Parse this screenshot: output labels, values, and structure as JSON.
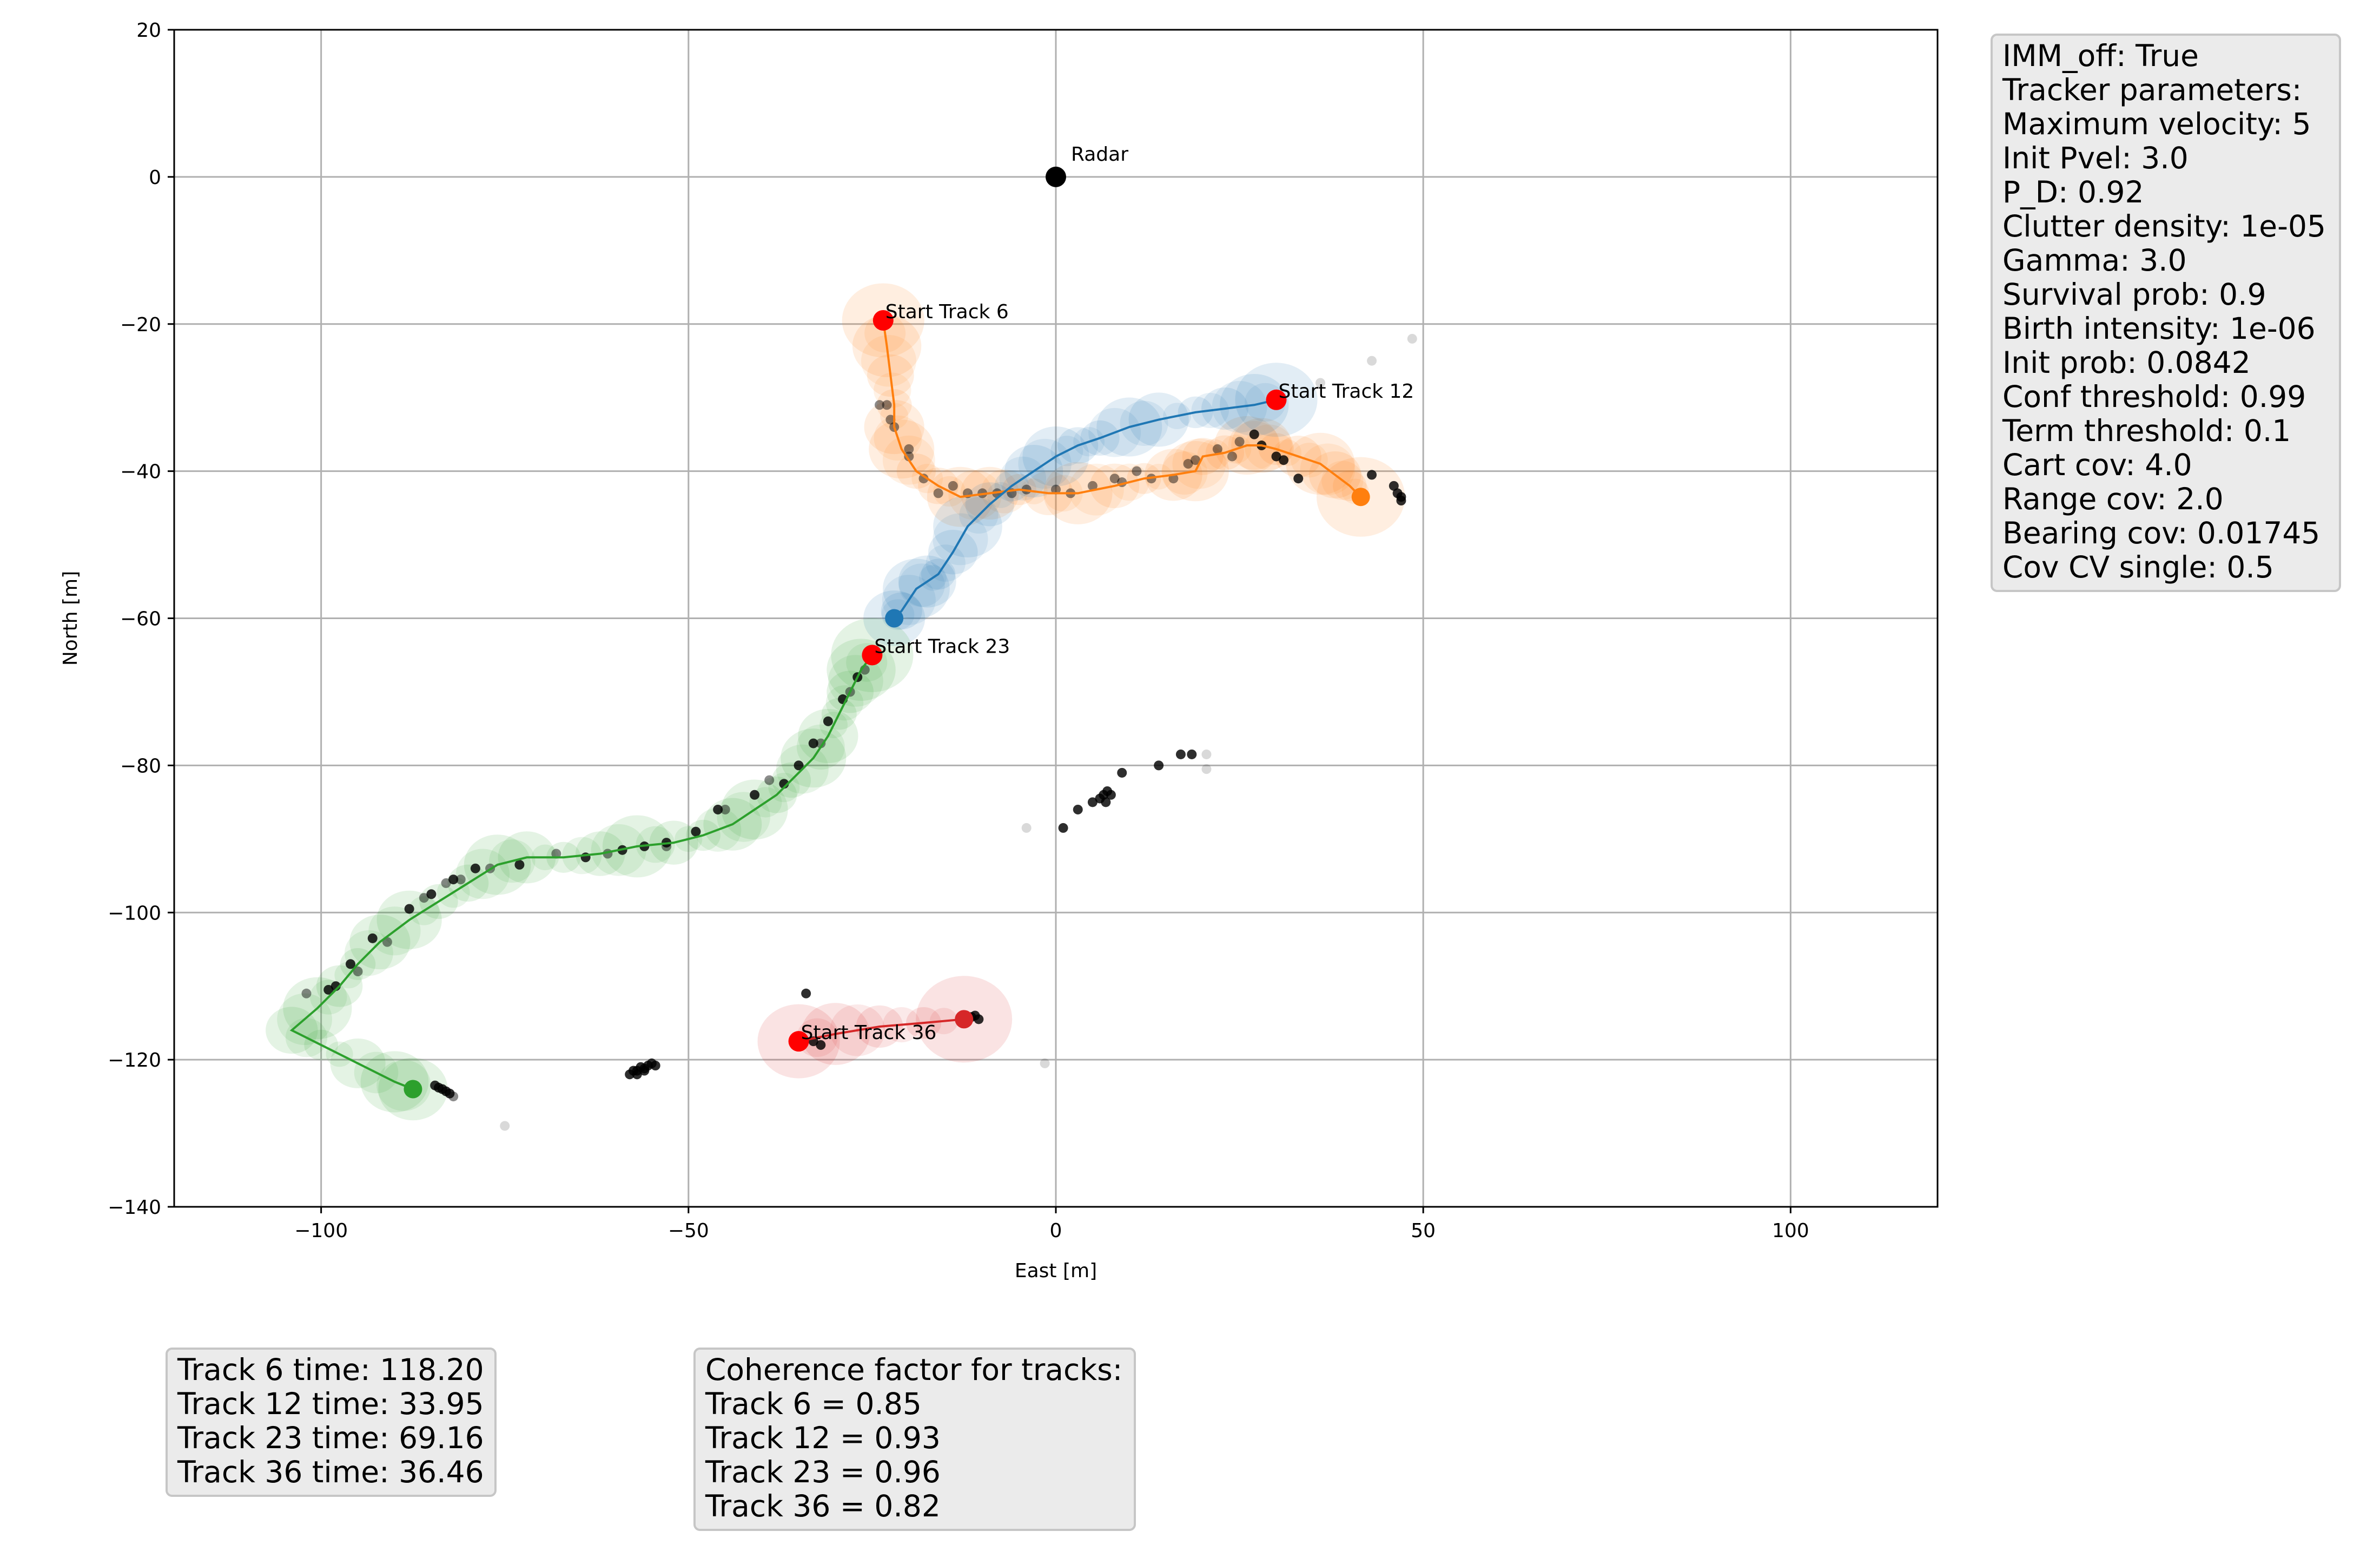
{
  "chart_data": {
    "type": "scatter",
    "xlabel": "East [m]",
    "ylabel": "North [m]",
    "xlim": [
      -120,
      120
    ],
    "ylim": [
      -140,
      20
    ],
    "xticks": [
      -100,
      -50,
      0,
      50,
      100
    ],
    "yticks": [
      20,
      0,
      -20,
      -40,
      -60,
      -80,
      -100,
      -120,
      -140
    ],
    "xtick_labels": [
      "−100",
      "−50",
      "0",
      "50",
      "100"
    ],
    "ytick_labels": [
      "20",
      "0",
      "−20",
      "−40",
      "−60",
      "−80",
      "−100",
      "−120",
      "−140"
    ],
    "grid": true,
    "radar": {
      "x": 0,
      "y": 0,
      "label": "Radar"
    },
    "tracks": [
      {
        "id": 6,
        "color": "#ff7f0e",
        "start_label": "Start Track 6",
        "path": [
          [
            -23.5,
            -19.5
          ],
          [
            -23,
            -23
          ],
          [
            -22.5,
            -27
          ],
          [
            -22,
            -31
          ],
          [
            -22,
            -34
          ],
          [
            -21,
            -37
          ],
          [
            -19,
            -40
          ],
          [
            -16,
            -42
          ],
          [
            -13,
            -43.5
          ],
          [
            -9,
            -43
          ],
          [
            -5,
            -42.5
          ],
          [
            -1,
            -43
          ],
          [
            3,
            -43
          ],
          [
            8,
            -42
          ],
          [
            12,
            -41
          ],
          [
            16,
            -40.5
          ],
          [
            19,
            -40
          ],
          [
            20,
            -38
          ],
          [
            23,
            -37.5
          ],
          [
            26,
            -36.5
          ],
          [
            28,
            -36.5
          ],
          [
            30,
            -37
          ],
          [
            33,
            -38
          ],
          [
            36,
            -39
          ],
          [
            38,
            -40.5
          ],
          [
            40,
            -42
          ],
          [
            41.5,
            -43.5
          ]
        ],
        "end": [
          41.5,
          -43.5
        ]
      },
      {
        "id": 12,
        "color": "#1f77b4",
        "start_label": "Start Track 12",
        "path": [
          [
            30,
            -30.3
          ],
          [
            27,
            -31
          ],
          [
            23,
            -31.5
          ],
          [
            19,
            -32
          ],
          [
            14,
            -33
          ],
          [
            10,
            -34
          ],
          [
            6,
            -35.5
          ],
          [
            3,
            -36.5
          ],
          [
            0,
            -38
          ],
          [
            -3,
            -40
          ],
          [
            -6,
            -42
          ],
          [
            -9,
            -44.5
          ],
          [
            -12,
            -47.5
          ],
          [
            -14,
            -51
          ],
          [
            -16,
            -54
          ],
          [
            -17.5,
            -55
          ],
          [
            -19,
            -56
          ],
          [
            -21,
            -59
          ],
          [
            -22,
            -60
          ]
        ],
        "end": [
          -22,
          -60
        ]
      },
      {
        "id": 23,
        "color": "#2ca02c",
        "start_label": "Start Track 23",
        "path": [
          [
            -25,
            -65
          ],
          [
            -26.5,
            -67
          ],
          [
            -28,
            -70
          ],
          [
            -29.5,
            -73
          ],
          [
            -31,
            -76
          ],
          [
            -33,
            -79
          ],
          [
            -36,
            -82
          ],
          [
            -38,
            -84
          ],
          [
            -41,
            -86
          ],
          [
            -44,
            -88
          ],
          [
            -48,
            -89.5
          ],
          [
            -52,
            -90.5
          ],
          [
            -57,
            -91
          ],
          [
            -62,
            -92
          ],
          [
            -67,
            -92.5
          ],
          [
            -72,
            -92.5
          ],
          [
            -76,
            -93.5
          ],
          [
            -80,
            -96
          ],
          [
            -84,
            -98.5
          ],
          [
            -88,
            -101
          ],
          [
            -92,
            -104
          ],
          [
            -95,
            -107
          ],
          [
            -97.5,
            -110
          ],
          [
            -100.5,
            -113
          ],
          [
            -104,
            -116
          ],
          [
            -100,
            -118
          ],
          [
            -95,
            -120.5
          ],
          [
            -90,
            -123
          ],
          [
            -87.5,
            -124
          ]
        ],
        "end": [
          -87.5,
          -124
        ]
      },
      {
        "id": 36,
        "color": "#d62728",
        "start_label": "Start Track 36",
        "path": [
          [
            -35,
            -117.5
          ],
          [
            -30,
            -116.5
          ],
          [
            -24,
            -115.5
          ],
          [
            -18,
            -115
          ],
          [
            -12.5,
            -114.5
          ]
        ],
        "end": [
          -12.5,
          -114.5
        ]
      }
    ],
    "track_time_box": [
      "Track 6 time: 118.20",
      "Track 12 time: 33.95",
      "Track 23 time: 69.16",
      "Track 36 time: 36.46"
    ],
    "coherence_box": [
      "Coherence factor for tracks:",
      "Track 6 = 0.85",
      "Track 12 = 0.93",
      "Track 23 = 0.96",
      "Track 36 = 0.82"
    ],
    "params_box": [
      "IMM_off: True",
      "Tracker parameters:",
      "Maximum velocity: 5",
      "Init Pvel: 3.0",
      "P_D: 0.92",
      "Clutter density: 1e-05",
      "Gamma: 3.0",
      "Survival prob: 0.9",
      "Birth intensity: 1e-06",
      "Init prob: 0.0842",
      "Conf threshold: 0.99",
      "Term threshold: 0.1",
      "Cart cov: 4.0",
      "Range cov: 2.0",
      "Bearing cov: 0.01745",
      "Cov CV single: 0.5"
    ],
    "detections_dark": [
      [
        -99,
        -110.5
      ],
      [
        -98,
        -110
      ],
      [
        -96,
        -107
      ],
      [
        -93,
        -103.5
      ],
      [
        -88,
        -99.5
      ],
      [
        -85,
        -97.5
      ],
      [
        -82,
        -95.5
      ],
      [
        -79,
        -94
      ],
      [
        -73,
        -93.5
      ],
      [
        -64,
        -92.5
      ],
      [
        -59,
        -91.5
      ],
      [
        -56,
        -91
      ],
      [
        -53,
        -90.5
      ],
      [
        -49,
        -89
      ],
      [
        -46,
        -86
      ],
      [
        -41,
        -84
      ],
      [
        -37,
        -82.5
      ],
      [
        -35,
        -80
      ],
      [
        -33,
        -77
      ],
      [
        -31,
        -74
      ],
      [
        -29,
        -71
      ],
      [
        -27,
        -68
      ],
      [
        -84.5,
        -123.5
      ],
      [
        -84,
        -123.8
      ],
      [
        -83.5,
        -124
      ],
      [
        -83,
        -124.3
      ],
      [
        -82.5,
        -124.6
      ],
      [
        -58,
        -122
      ],
      [
        -57.5,
        -121.5
      ],
      [
        -57,
        -121.5
      ],
      [
        -56.5,
        -121
      ],
      [
        -56,
        -121.2
      ],
      [
        -55.5,
        -120.8
      ],
      [
        -55,
        -120.5
      ],
      [
        -54.5,
        -120.8
      ],
      [
        -56,
        -121.5
      ],
      [
        -57,
        -122
      ],
      [
        -34,
        -111
      ],
      [
        -33,
        -117.5
      ],
      [
        -32,
        -118
      ],
      [
        -11,
        -114
      ],
      [
        -10.5,
        -114.5
      ],
      [
        -11.5,
        -114.2
      ],
      [
        1,
        -88.5
      ],
      [
        3,
        -86
      ],
      [
        5,
        -85
      ],
      [
        6,
        -84.5
      ],
      [
        6.5,
        -84
      ],
      [
        7,
        -83.5
      ],
      [
        7.5,
        -84
      ],
      [
        6.8,
        -85
      ],
      [
        9,
        -81
      ],
      [
        14,
        -80
      ],
      [
        17,
        -78.5
      ],
      [
        18.5,
        -78.5
      ],
      [
        43,
        -40.5
      ],
      [
        46,
        -42
      ],
      [
        46.5,
        -43
      ],
      [
        47,
        -43.5
      ],
      [
        47,
        -44
      ],
      [
        27,
        -35
      ],
      [
        28,
        -36.5
      ],
      [
        30,
        -38
      ],
      [
        31,
        -38.5
      ],
      [
        33,
        -41
      ]
    ],
    "detections_gray": [
      [
        -102,
        -111
      ],
      [
        -95,
        -108
      ],
      [
        -91,
        -104
      ],
      [
        -86,
        -98
      ],
      [
        -83,
        -96
      ],
      [
        -81,
        -95.5
      ],
      [
        -77,
        -94
      ],
      [
        -68,
        -92
      ],
      [
        -61,
        -92
      ],
      [
        -53,
        -91
      ],
      [
        -45,
        -86
      ],
      [
        -39,
        -82
      ],
      [
        -32,
        -77
      ],
      [
        -28,
        -70
      ],
      [
        -26,
        -67
      ],
      [
        -82,
        -125
      ],
      [
        -23,
        -31
      ],
      [
        -22,
        -34
      ],
      [
        -20,
        -38
      ],
      [
        -18,
        -41
      ],
      [
        -16,
        -43
      ],
      [
        -12,
        -43
      ],
      [
        -8,
        -43
      ],
      [
        -4,
        -42.5
      ],
      [
        0,
        -42.5
      ],
      [
        5,
        -42
      ],
      [
        9,
        -41.5
      ],
      [
        13,
        -41
      ],
      [
        18,
        -39
      ],
      [
        22,
        -37
      ],
      [
        25,
        -36
      ],
      [
        -24,
        -31
      ],
      [
        -22.5,
        -33
      ],
      [
        -20,
        -37
      ],
      [
        -14,
        -42
      ],
      [
        -10,
        -43
      ],
      [
        -6,
        -43
      ],
      [
        2,
        -43
      ],
      [
        8,
        -41
      ],
      [
        11,
        -40
      ],
      [
        16,
        -41
      ],
      [
        24,
        -38
      ],
      [
        19,
        -38.5
      ]
    ],
    "detections_light": [
      [
        -75,
        -129
      ],
      [
        -4,
        -88.5
      ],
      [
        -1.5,
        -120.5
      ],
      [
        20.5,
        -78.5
      ],
      [
        20.5,
        -80.5
      ],
      [
        36,
        -28
      ],
      [
        43,
        -25
      ],
      [
        48.5,
        -22
      ]
    ]
  }
}
